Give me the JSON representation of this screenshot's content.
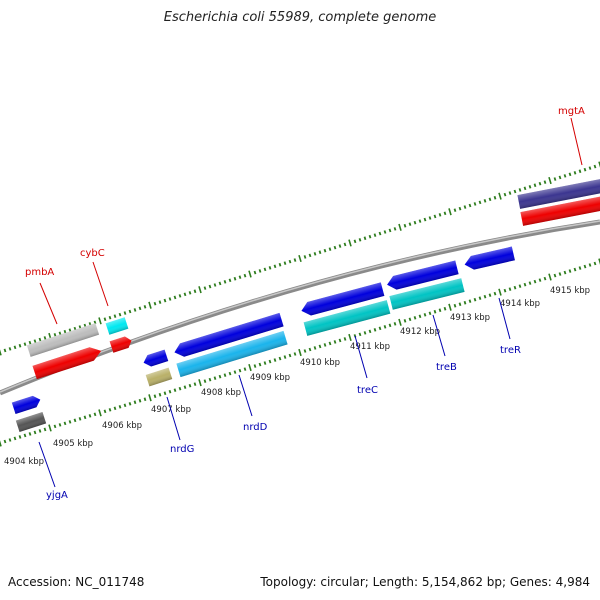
{
  "title": "Escherichia coli 55989, complete genome",
  "footer": {
    "accession": "Accession: NC_011748",
    "summary": "Topology: circular; Length: 5,154,862 bp; Genes: 4,984"
  },
  "ticks": [
    "4904 kbp",
    "4905 kbp",
    "4906 kbp",
    "4907 kbp",
    "4908 kbp",
    "4909 kbp",
    "4910 kbp",
    "4911 kbp",
    "4912 kbp",
    "4913 kbp",
    "4914 kbp",
    "4915 kbp"
  ],
  "genes": [
    {
      "name": "pmbA",
      "strand": "forward"
    },
    {
      "name": "cybC",
      "strand": "forward"
    },
    {
      "name": "mgtA",
      "strand": "forward"
    },
    {
      "name": "yjgA",
      "strand": "reverse"
    },
    {
      "name": "nrdG",
      "strand": "reverse"
    },
    {
      "name": "nrdD",
      "strand": "reverse"
    },
    {
      "name": "treC",
      "strand": "reverse"
    },
    {
      "name": "treB",
      "strand": "reverse"
    },
    {
      "name": "treR",
      "strand": "reverse"
    }
  ],
  "colors": {
    "backbone": "#8a8a8a",
    "tick": "#2e7d1e",
    "forward_label": "#d40000",
    "reverse_label": "#0000b0",
    "red": "#ee0000",
    "blue": "#0000dd",
    "cyan": "#00c4c4",
    "light_blue": "#1ab4ec",
    "gray": "#bdbdbd",
    "dark_gray": "#555555",
    "olive": "#b9b068",
    "navy": "#3b3590",
    "aqua": "#00e8f0"
  }
}
